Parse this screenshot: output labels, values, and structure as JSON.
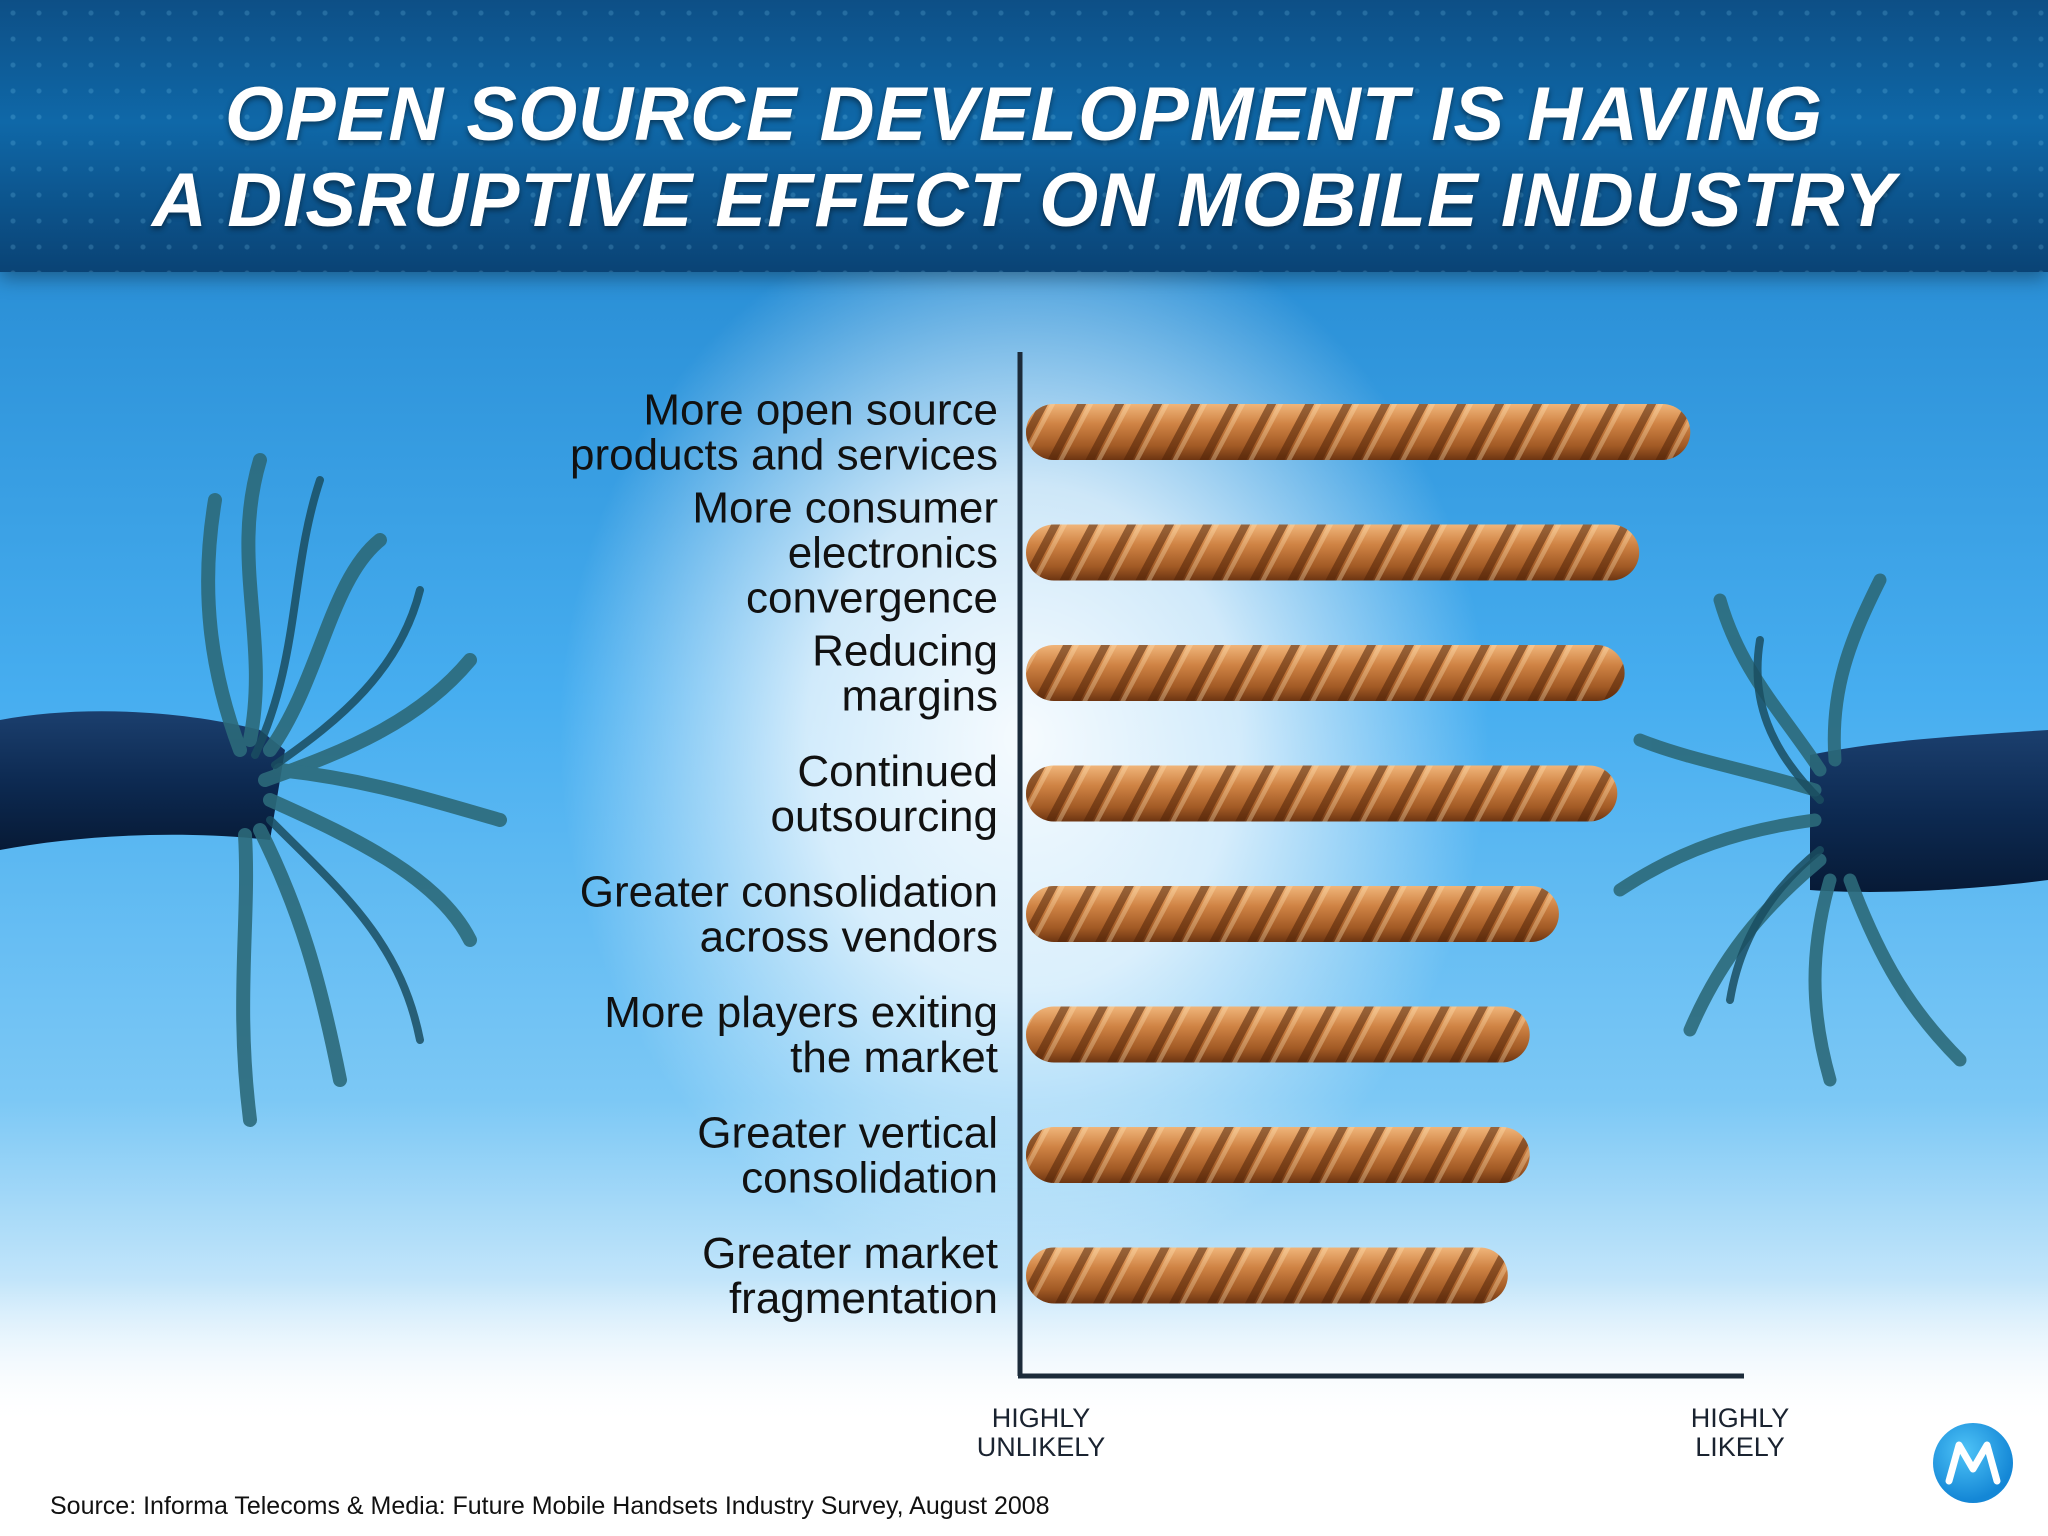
{
  "title_line1": "OPEN SOURCE DEVELOPMENT IS HAVING",
  "title_line2": "A DISRUPTIVE EFFECT ON MOBILE INDUSTRY",
  "source": "Source: Informa Telecoms & Media: Future Mobile Handsets Industry Survey, August 2008",
  "logo_icon": "motorola-logo-icon",
  "colors": {
    "header": "#0f68a8",
    "rope": "#c4763a",
    "axis": "#1c2b3a"
  },
  "chart_data": {
    "type": "bar",
    "orientation": "horizontal",
    "categories": [
      [
        "More open source",
        "products and services"
      ],
      [
        "More consumer",
        "electronics",
        "convergence"
      ],
      [
        "Reducing",
        "margins"
      ],
      [
        "Continued",
        "outsourcing"
      ],
      [
        "Greater consolidation",
        "across vendors"
      ],
      [
        "More players exiting",
        "the market"
      ],
      [
        "Greater vertical",
        "consolidation"
      ],
      [
        "Greater market",
        "fragmentation"
      ]
    ],
    "values": [
      0.91,
      0.84,
      0.82,
      0.81,
      0.73,
      0.69,
      0.69,
      0.66
    ],
    "xlim": [
      0,
      1
    ],
    "x_ticks": [
      {
        "value": 0,
        "lines": [
          "HIGHLY",
          "UNLIKELY"
        ]
      },
      {
        "value": 1,
        "lines": [
          "HIGHLY",
          "LIKELY"
        ]
      }
    ],
    "bar_style": "rope",
    "grid": false
  }
}
